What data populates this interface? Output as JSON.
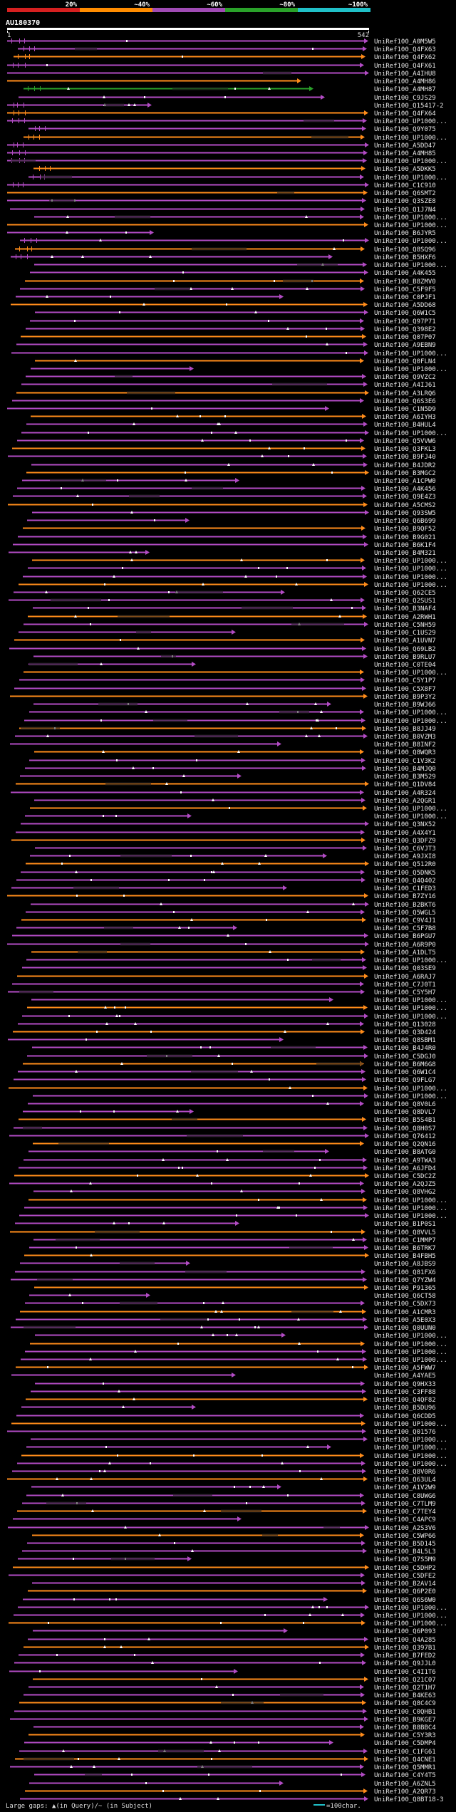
{
  "chart_data": {
    "type": "alignment-overview",
    "title": "AU180370",
    "identity_scale": [
      {
        "label": "20%",
        "color": "#d62020"
      },
      {
        "label": "~40%",
        "color": "#ff8c00"
      },
      {
        "label": "~60%",
        "color": "#a04bb4"
      },
      {
        "label": "~80%",
        "color": "#2aa22a"
      },
      {
        "label": "~100%",
        "color": "#20c0c8"
      }
    ],
    "query_start": "1",
    "query_end": "542",
    "query_length": 542,
    "footer_legend": "Large gaps: ▲(in Query)/~ (in Subject)",
    "scale_legend": "=100char.",
    "hit_ids": [
      "UniRef100_A0M5W5",
      "UniRef100_Q4FX63",
      "UniRef100_Q4FX62",
      "UniRef100_Q4FX61",
      "UniRef100_A4IHU8",
      "UniRef100_A4MH86",
      "UniRef100_A4MH87",
      "UniRef100_C9JS29",
      "UniRef100_Q15417-2",
      "UniRef100_Q4FX64",
      "UniRef100_UP1000...",
      "UniRef100_Q9Y075",
      "UniRef100_UP1000...",
      "UniRef100_A5DD47",
      "UniRef100_A4MH85",
      "UniRef100_UP1000...",
      "UniRef100_A5DKK5",
      "UniRef100_UP1000...",
      "UniRef100_C1C910",
      "UniRef100_Q6SMT2",
      "UniRef100_Q3SZE8",
      "UniRef100_Q1J7N4",
      "UniRef100_UP1000...",
      "UniRef100_UP1000...",
      "UniRef100_B6JYR5",
      "UniRef100_UP1000...",
      "UniRef100_Q8SQ96",
      "UniRef100_B5HXF6",
      "UniRef100_UP1000...",
      "UniRef100_A4K455",
      "UniRef100_B8ZMV0",
      "UniRef100_C5F9F5",
      "UniRef100_C0PJF1",
      "UniRef100_A5DD68",
      "UniRef100_Q6W1C5",
      "UniRef100_Q97P71",
      "UniRef100_Q398E2",
      "UniRef100_Q07P07",
      "UniRef100_A9EBN9",
      "UniRef100_UP1000...",
      "UniRef100_Q0FLN4",
      "UniRef100_UP1000...",
      "UniRef100_Q9VZC2",
      "UniRef100_A4IJ61",
      "UniRef100_A3LRQ6",
      "UniRef100_Q6S3E6",
      "UniRef100_C1N5D9",
      "UniRef100_A6IYH3",
      "UniRef100_B4HUL4",
      "UniRef100_UP1000...",
      "UniRef100_Q5VVW6",
      "UniRef100_Q3FKL3",
      "UniRef100_B9FJ40",
      "UniRef100_B4JDR2",
      "UniRef100_B3MGC2",
      "UniRef100_A1CPW0",
      "UniRef100_A4K456",
      "UniRef100_Q9E4Z3",
      "UniRef100_A5CMS2",
      "UniRef100_Q93SW5",
      "UniRef100_Q6B699",
      "UniRef100_B9QF52",
      "UniRef100_B9G021",
      "UniRef100_B6K1F4",
      "UniRef100_B4M321",
      "UniRef100_UP1000...",
      "UniRef100_UP1000...",
      "UniRef100_UP1000...",
      "UniRef100_UP1000...",
      "UniRef100_Q62CE5",
      "UniRef100_Q2SUS1",
      "UniRef100_B3NAF4",
      "UniRef100_A2RWH1",
      "UniRef100_C5NH59",
      "UniRef100_C1US29",
      "UniRef100_A1UVN7",
      "UniRef100_Q69LB2",
      "UniRef100_B9RLU7",
      "UniRef100_C0TE04",
      "UniRef100_UP1000...",
      "UniRef100_C5Y1P7",
      "UniRef100_C5X8F7",
      "UniRef100_B9P3Y2",
      "UniRef100_B9WJ66",
      "UniRef100_UP1000...",
      "UniRef100_UP1000...",
      "UniRef100_B8JJ49",
      "UniRef100_B0VZM3",
      "UniRef100_B8INF2",
      "UniRef100_Q8WQR3",
      "UniRef100_C1V3K2",
      "UniRef100_B4MJQ0",
      "UniRef100_B3M529",
      "UniRef100_Q1DV84",
      "UniRef100_A4R324",
      "UniRef100_A2QGR1",
      "UniRef100_UP1000...",
      "UniRef100_UP1000...",
      "UniRef100_Q3NX52",
      "UniRef100_A4X4Y1",
      "UniRef100_Q3DFZ9",
      "UniRef100_C6VJT3",
      "UniRef100_A9JXI8",
      "UniRef100_Q512R0",
      "UniRef100_Q5DNK5",
      "UniRef100_Q4Q402",
      "UniRef100_C1FED3",
      "UniRef100_B7ZY16",
      "UniRef100_B2BKT6",
      "UniRef100_Q5WGL5",
      "UniRef100_C9V4J1",
      "UniRef100_C5F7B8",
      "UniRef100_B6PGU7",
      "UniRef100_A6R9P0",
      "UniRef100_A1DLT5",
      "UniRef100_UP1000...",
      "UniRef100_Q03SE9",
      "UniRef100_A6RAJ7",
      "UniRef100_C7J0T1",
      "UniRef100_C5Y5H7",
      "UniRef100_UP1000...",
      "UniRef100_UP1000...",
      "UniRef100_UP1000...",
      "UniRef100_Q13028",
      "UniRef100_Q3D424",
      "UniRef100_Q8SBM1",
      "UniRef100_B4J4R0",
      "UniRef100_C5DGJ0",
      "UniRef100_B6M6G8",
      "UniRef100_Q6W1C4",
      "UniRef100_Q9FLG7",
      "UniRef100_UP1000...",
      "UniRef100_UP1000...",
      "UniRef100_Q8V0L6",
      "UniRef100_Q8DVL7",
      "UniRef100_B5S4B1",
      "UniRef100_Q8H0S7",
      "UniRef100_Q76412",
      "UniRef100_Q2QN16",
      "UniRef100_B8ATG0",
      "UniRef100_A9TWA3",
      "UniRef100_A6JFD4",
      "UniRef100_C5DC2Z",
      "UniRef100_A2QJZ5",
      "UniRef100_Q8VHG2",
      "UniRef100_UP1000...",
      "UniRef100_UP1000...",
      "UniRef100_UP1000...",
      "UniRef100_B1P0S1",
      "UniRef100_Q8VVL5",
      "UniRef100_C1MMP7",
      "UniRef100_B6TRK7",
      "UniRef100_B4FBH5",
      "UniRef100_A8JBS9",
      "UniRef100_Q81FX6",
      "UniRef100_Q7YZW4",
      "UniRef100_P91365",
      "UniRef100_Q6CT58",
      "UniRef100_C5DX73",
      "UniRef100_A1CMR3",
      "UniRef100_A5E0X3",
      "UniRef100_Q0UUN0",
      "UniRef100_UP1000...",
      "UniRef100_UP1000...",
      "UniRef100_UP1000...",
      "UniRef100_UP1000...",
      "UniRef100_A5FWW7",
      "UniRef100_A4YAE5",
      "UniRef100_Q9HX33",
      "UniRef100_C3FF88",
      "UniRef100_Q4QF82",
      "UniRef100_B5DU96",
      "UniRef100_Q6CDD5",
      "UniRef100_UP1000...",
      "UniRef100_Q01576",
      "UniRef100_UP1000...",
      "UniRef100_UP1000...",
      "UniRef100_UP1000...",
      "UniRef100_UP1000...",
      "UniRef100_Q8V0R6",
      "UniRef100_Q63UL4",
      "UniRef100_A1V2W9",
      "UniRef100_C8UWG6",
      "UniRef100_C7TLM9",
      "UniRef100_C7TEY4",
      "UniRef100_C4APC9",
      "UniRef100_A2S3V6",
      "UniRef100_C5WP66",
      "UniRef100_B5D145",
      "UniRef100_B4L5L3",
      "UniRef100_Q7S5M9",
      "UniRef100_C5DHP2",
      "UniRef100_C5DFE2",
      "UniRef100_B2AV14",
      "UniRef100_Q6P2E0",
      "UniRef100_Q6S6W0",
      "UniRef100_UP1000...",
      "UniRef100_UP1000...",
      "UniRef100_UP1000...",
      "UniRef100_Q6P093",
      "UniRef100_Q4A285",
      "UniRef100_Q397B1",
      "UniRef100_B7FED2",
      "UniRef100_Q9JJL0",
      "UniRef100_C4I1T6",
      "UniRef100_Q21C07",
      "UniRef100_Q2T1H7",
      "UniRef100_B4KE63",
      "UniRef100_Q8C4C9",
      "UniRef100_C0QHB1",
      "UniRef100_B9KGE7",
      "UniRef100_B8BBC4",
      "UniRef100_C5Y3R3",
      "UniRef100_C5DMP4",
      "UniRef100_C1FG61",
      "UniRef100_Q4CNE1",
      "UniRef100_Q5MMR1",
      "UniRef100_C4Y4T5",
      "UniRef100_A6ZNL5",
      "UniRef100_A2QR73",
      "UniRef100_Q8BT18-3"
    ]
  }
}
